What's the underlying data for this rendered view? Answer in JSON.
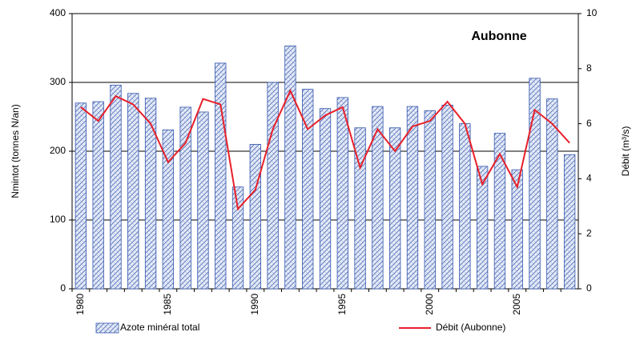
{
  "chart_data": {
    "type": "bar-line",
    "annotation": "Aubonne",
    "y_label": "Nmintot (tonnes N/an)",
    "y2_label": "Débit (m³/s)",
    "categories": [
      "1980",
      null,
      null,
      null,
      null,
      "1985",
      null,
      null,
      null,
      null,
      "1990",
      null,
      null,
      null,
      null,
      "1995",
      null,
      null,
      null,
      null,
      "2000",
      null,
      null,
      null,
      null,
      "2005",
      null,
      null,
      null
    ],
    "series": [
      {
        "name": "Azote minéral total",
        "type": "bar",
        "color": "#3355aa",
        "values": [
          270,
          272,
          296,
          284,
          277,
          231,
          264,
          257,
          328,
          148,
          210,
          300,
          353,
          290,
          262,
          278,
          234,
          265,
          234,
          265,
          259,
          267,
          240,
          178,
          226,
          173,
          306,
          276,
          195
        ]
      },
      {
        "name": "Débit (Aubonne)",
        "type": "line",
        "color": "#e8202a",
        "axis": "y2",
        "values": [
          6.6,
          6.1,
          7.0,
          6.7,
          6.0,
          4.6,
          5.3,
          6.9,
          6.7,
          2.9,
          3.6,
          5.8,
          7.2,
          5.8,
          6.3,
          6.6,
          4.4,
          5.8,
          5.0,
          5.9,
          6.1,
          6.8,
          6.0,
          3.8,
          4.9,
          3.7,
          6.5,
          6.0,
          5.3
        ]
      }
    ],
    "ylim": [
      0,
      400
    ],
    "yticks": [
      0,
      100,
      200,
      300,
      400
    ],
    "y2lim": [
      0,
      10
    ],
    "y2ticks": [
      0,
      2,
      4,
      6,
      8,
      10
    ],
    "grid": true
  }
}
